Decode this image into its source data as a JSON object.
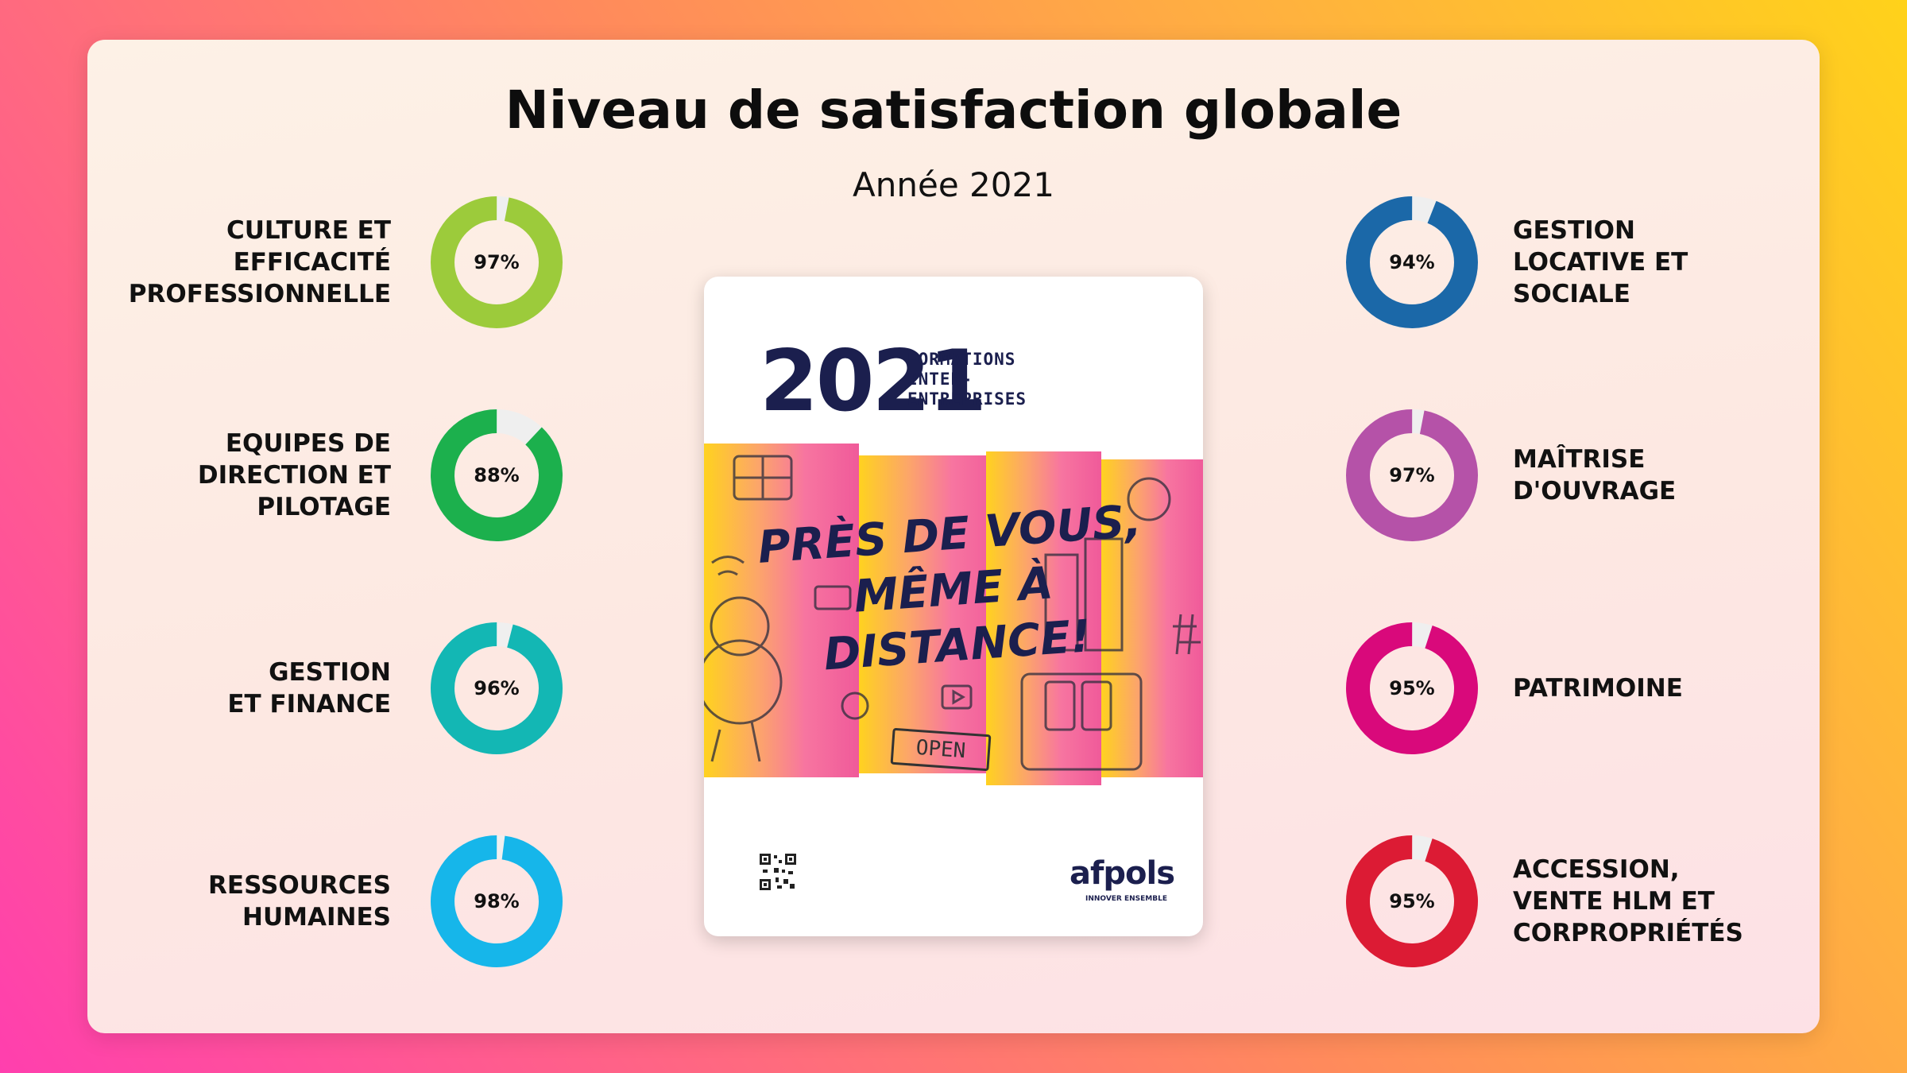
{
  "title": "Niveau de satisfaction globale",
  "subtitle": "Année 2021",
  "chart_data": {
    "type": "donut",
    "title": "Niveau de satisfaction globale",
    "subtitle": "Année 2021",
    "unit": "%",
    "max": 100,
    "categories": [
      {
        "name": "CULTURE ET\nEFFICACITÉ\nPROFESSIONNELLE",
        "value": 97,
        "label": "97%",
        "color": "#9ccb3b",
        "side": "left"
      },
      {
        "name": "EQUIPES DE\nDIRECTION ET\nPILOTAGE",
        "value": 88,
        "label": "88%",
        "color": "#1cb04d",
        "side": "left"
      },
      {
        "name": "GESTION\nET FINANCE",
        "value": 96,
        "label": "96%",
        "color": "#13b7b4",
        "side": "left"
      },
      {
        "name": "RESSOURCES\nHUMAINES",
        "value": 98,
        "label": "98%",
        "color": "#16b6ea",
        "side": "left"
      },
      {
        "name": "GESTION\nLOCATIVE ET\nSOCIALE",
        "value": 94,
        "label": "94%",
        "color": "#1b68a8",
        "side": "right"
      },
      {
        "name": "MAÎTRISE\nD'OUVRAGE",
        "value": 97,
        "label": "97%",
        "color": "#b552a8",
        "side": "right"
      },
      {
        "name": "PATRIMOINE",
        "value": 95,
        "label": "95%",
        "color": "#d9097b",
        "side": "right"
      },
      {
        "name": "ACCESSION,\nVENTE HLM ET\nCORPROPRIÉTÉS",
        "value": 95,
        "label": "95%",
        "color": "#dc1b34",
        "side": "right"
      }
    ],
    "track_color": "#efefef"
  },
  "booklet": {
    "year": "2021",
    "line1": "FORMATIONS",
    "line2": "INTER-",
    "line3": "ENTREPRISES",
    "slogan1": "PRÈS DE VOUS,",
    "slogan2": "MÊME À",
    "slogan3": "DISTANCE!",
    "open_sign": "OPEN",
    "logo": "afpols",
    "tagline": "INNOVER ENSEMBLE"
  }
}
